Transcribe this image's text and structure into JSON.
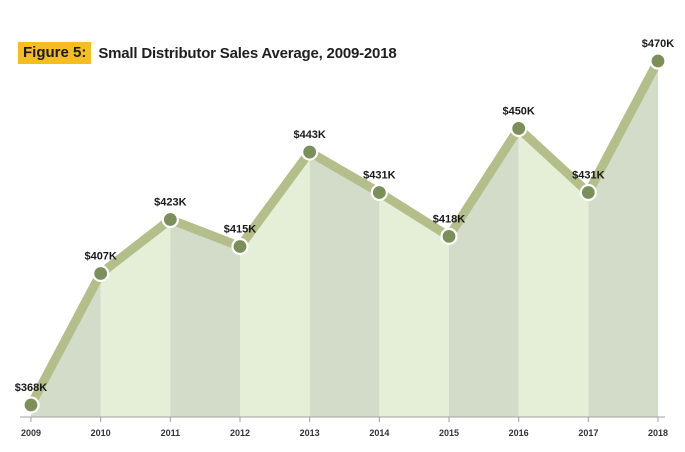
{
  "header": {
    "figure_label": "Figure 5:",
    "title": "Small Distributor Sales Average, 2009-2018"
  },
  "colors": {
    "badge": "#f5bd1f",
    "line": "#b4be8a",
    "marker": "#7a8f5a",
    "area_dark": "#d3dbc9",
    "area_light": "#e5eed7",
    "axis": "#a0a0a0"
  },
  "chart_data": {
    "type": "line",
    "title": "Small Distributor Sales Average, 2009-2018",
    "categories": [
      "2009",
      "2010",
      "2011",
      "2012",
      "2013",
      "2014",
      "2015",
      "2016",
      "2017",
      "2018"
    ],
    "values": [
      368,
      407,
      423,
      415,
      443,
      431,
      418,
      450,
      431,
      470
    ],
    "data_labels": [
      "$368K",
      "$407K",
      "$423K",
      "$415K",
      "$443K",
      "$431K",
      "$418K",
      "$450K",
      "$431K",
      "$470K"
    ],
    "units": "thousands of dollars",
    "fill": "area with alternating shaded bands",
    "grid": false,
    "legend": "none"
  }
}
